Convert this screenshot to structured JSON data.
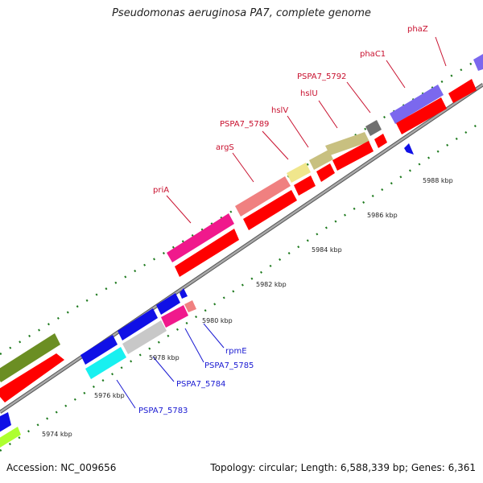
{
  "title": "Pseudomonas aeruginosa PA7, complete genome",
  "accession": "Accession: NC_009656",
  "summary": "Topology: circular; Length: 6,588,339 bp; Genes: 6,361",
  "colors": {
    "backbone": "#8a8a8a",
    "tick": "#1e7a1e",
    "label_red": "#c8102e",
    "label_blue": "#1a1ad2",
    "cds_red": "#ff0000",
    "dark_olive": "#6b8e23",
    "blue": "#1010e6",
    "cyan": "#18f0f0",
    "pink": "#f0198c",
    "salmon": "#f08080",
    "khaki": "#c8c080",
    "pale_yellow": "#f0e68c",
    "slate": "#7b68ee",
    "gray": "#707070",
    "light_gray": "#c8c8c8",
    "green_yellow": "#adff2f"
  },
  "scale_labels": [
    "5974 kbp",
    "5976 kbp",
    "5978 kbp",
    "5980 kbp",
    "5982 kbp",
    "5984 kbp",
    "5986 kbp",
    "5988 kbp"
  ],
  "gene_labels": {
    "phaZ": "phaZ",
    "phaC1": "phaC1",
    "PSPA7_5792": "PSPA7_5792",
    "hslU": "hslU",
    "hslV": "hslV",
    "PSPA7_5789": "PSPA7_5789",
    "argS": "argS",
    "priA": "priA",
    "rpmE": "rpmE",
    "PSPA7_5785": "PSPA7_5785",
    "PSPA7_5784": "PSPA7_5784",
    "PSPA7_5783": "PSPA7_5783"
  }
}
